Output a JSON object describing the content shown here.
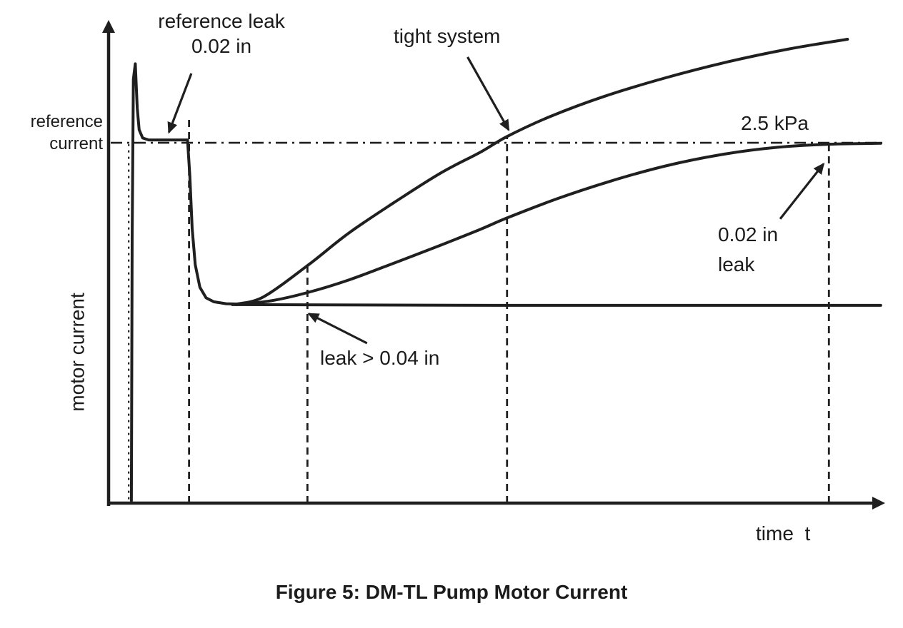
{
  "figure": {
    "caption": "Figure 5: DM-TL Pump Motor Current"
  },
  "chart_data": {
    "type": "line",
    "title": "Figure 5: DM-TL Pump Motor Current",
    "xlabel": "time  t",
    "ylabel": "motor current",
    "axis_ranges": {
      "x": [
        0,
        100
      ],
      "y": [
        0,
        100
      ],
      "note": "schematic plot without numeric tick labels; coordinates are fractions (0-100) of the plot area"
    },
    "grid": false,
    "legend": "none (annotated with arrows)",
    "colors": {
      "ink": "#1f1f1f",
      "background": "#ffffff"
    },
    "reference_line": {
      "label_line1": "reference",
      "label_line2": "current",
      "value_label": "2.5 kPa",
      "level": 74.8,
      "style": "dash-dot horizontal line"
    },
    "series": [
      {
        "name": "pump start spike and reference leak measurement",
        "smooth": false,
        "points": [
          [
            2.95,
            0.5
          ],
          [
            3.05,
            55
          ],
          [
            3.2,
            88
          ],
          [
            3.45,
            91.2
          ],
          [
            3.7,
            82
          ],
          [
            3.95,
            77.5
          ],
          [
            4.4,
            75.8
          ],
          [
            5.2,
            75.4
          ],
          [
            10.2,
            75.4
          ],
          [
            10.5,
            68
          ],
          [
            10.8,
            57
          ],
          [
            11.2,
            49.5
          ],
          [
            11.8,
            44.8
          ],
          [
            12.6,
            42.6
          ],
          [
            13.6,
            41.8
          ],
          [
            15.2,
            41.4
          ],
          [
            17.5,
            41.3
          ]
        ]
      },
      {
        "name": "tight system",
        "smooth": true,
        "points": [
          [
            16.5,
            41.3
          ],
          [
            20,
            42.8
          ],
          [
            25.7,
            49.3
          ],
          [
            31,
            56
          ],
          [
            37,
            62.5
          ],
          [
            43,
            68.6
          ],
          [
            48,
            72.8
          ],
          [
            51.5,
            76.1
          ],
          [
            57,
            80.2
          ],
          [
            64,
            84.4
          ],
          [
            72,
            88.3
          ],
          [
            80,
            91.6
          ],
          [
            88,
            94.3
          ],
          [
            95.5,
            96.3
          ]
        ]
      },
      {
        "name": "0.02 in leak",
        "smooth": true,
        "points": [
          [
            16.5,
            41.2
          ],
          [
            21,
            42
          ],
          [
            25.7,
            43.7
          ],
          [
            31,
            46.3
          ],
          [
            37,
            49.9
          ],
          [
            43,
            53.6
          ],
          [
            48,
            56.8
          ],
          [
            51.5,
            59.2
          ],
          [
            58,
            63.2
          ],
          [
            65,
            66.9
          ],
          [
            72,
            70
          ],
          [
            79,
            72.3
          ],
          [
            86,
            73.8
          ],
          [
            93.1,
            74.5
          ],
          [
            99.8,
            74.7
          ]
        ]
      },
      {
        "name": "leak > 0.04 in",
        "smooth": false,
        "points": [
          [
            16,
            41.2
          ],
          [
            50,
            41.05
          ],
          [
            99.8,
            41.05
          ]
        ]
      }
    ],
    "event_lines": [
      {
        "x": 2.6,
        "y_from": 0.8,
        "y_to": 74.5,
        "dash": "3 6",
        "width": 2.2
      },
      {
        "x": 10.4,
        "y_from": 0,
        "y_to": 80.4,
        "dash": "10 7",
        "width": 2.8
      },
      {
        "x": 25.7,
        "y_from": 0,
        "y_to": 49.4,
        "dash": "10 7",
        "width": 2.8
      },
      {
        "x": 51.5,
        "y_from": 0,
        "y_to": 75.9,
        "dash": "10 7",
        "width": 2.8
      },
      {
        "x": 93.1,
        "y_from": 0,
        "y_to": 74.4,
        "dash": "10 7",
        "width": 2.8
      }
    ],
    "annotations": [
      {
        "id": "reference-leak",
        "text_line1": "reference leak",
        "text_line2": "0.02 in",
        "arrow": {
          "from": [
            10.7,
            89.2
          ],
          "to": [
            7.8,
            77.0
          ]
        }
      },
      {
        "id": "tight-system",
        "text": "tight system",
        "arrow": {
          "from": [
            46.4,
            92.6
          ],
          "to": [
            51.7,
            77.5
          ]
        }
      },
      {
        "id": "leak-gt-004",
        "text": "leak > 0.04 in",
        "arrow": {
          "from": [
            33.4,
            33.2
          ],
          "to": [
            25.9,
            39.3
          ]
        }
      },
      {
        "id": "small-leak",
        "text_line1": "0.02 in",
        "text_line2": "leak",
        "arrow": {
          "from": [
            86.8,
            59.0
          ],
          "to": [
            92.4,
            70.4
          ]
        }
      }
    ]
  }
}
